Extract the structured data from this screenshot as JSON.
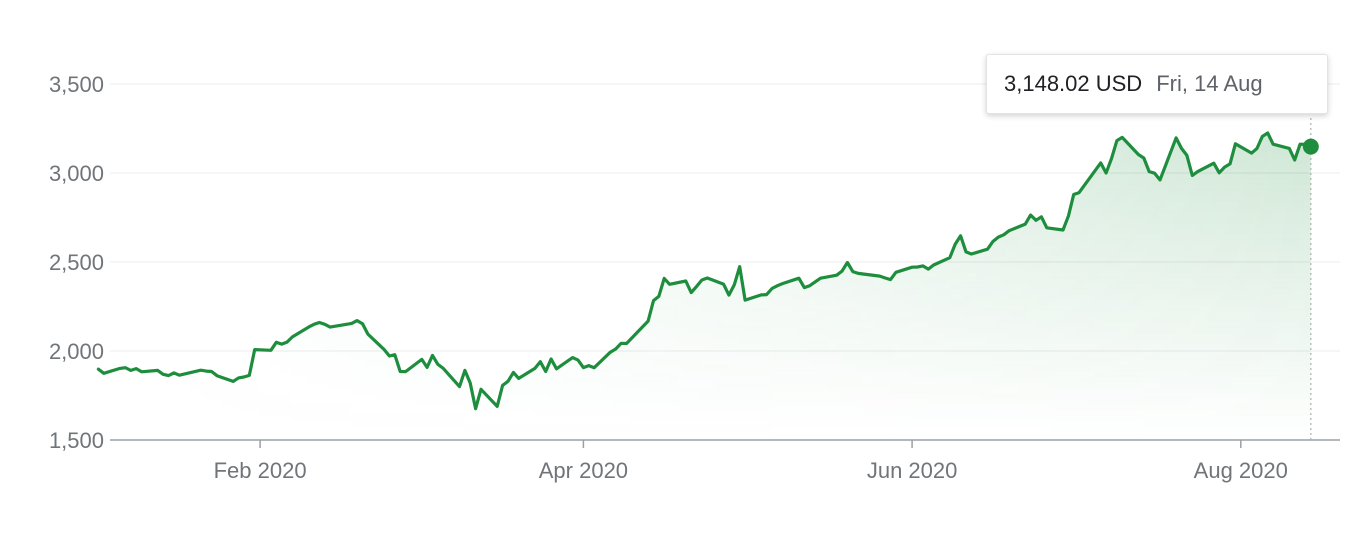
{
  "tooltip": {
    "value": "3,148.02 USD",
    "date": "Fri, 14 Aug"
  },
  "colors": {
    "line": "#1e8e3e",
    "area_top": "#1e8e3e",
    "grid": "#ececec",
    "axis": "#9aa0a6",
    "tick_text": "#70757a"
  },
  "chart_data": {
    "type": "line",
    "title": "",
    "xlabel": "",
    "ylabel": "",
    "ylim": [
      1500,
      3500
    ],
    "yticks": [
      {
        "value": 1500,
        "label": "1,500"
      },
      {
        "value": 2000,
        "label": "2,000"
      },
      {
        "value": 2500,
        "label": "2,500"
      },
      {
        "value": 3000,
        "label": "3,000"
      },
      {
        "value": 3500,
        "label": "3,500"
      }
    ],
    "xlim": [
      "2020-01-06",
      "2020-08-17"
    ],
    "xticks": [
      {
        "date": "2020-02-01",
        "label": "Feb 2020"
      },
      {
        "date": "2020-04-01",
        "label": "Apr 2020"
      },
      {
        "date": "2020-06-01",
        "label": "Jun 2020"
      },
      {
        "date": "2020-08-01",
        "label": "Aug 2020"
      }
    ],
    "grid": true,
    "legend": "none",
    "area_fill": true,
    "highlight": {
      "x": "2020-08-14",
      "y": 3148.02
    },
    "series": [
      {
        "x": [
          "2020-01-02",
          "2020-01-03",
          "2020-01-06",
          "2020-01-07",
          "2020-01-08",
          "2020-01-09",
          "2020-01-10",
          "2020-01-13",
          "2020-01-14",
          "2020-01-15",
          "2020-01-16",
          "2020-01-17",
          "2020-01-21",
          "2020-01-22",
          "2020-01-23",
          "2020-01-24",
          "2020-01-27",
          "2020-01-28",
          "2020-01-29",
          "2020-01-30",
          "2020-01-31",
          "2020-02-03",
          "2020-02-04",
          "2020-02-05",
          "2020-02-06",
          "2020-02-07",
          "2020-02-10",
          "2020-02-11",
          "2020-02-12",
          "2020-02-13",
          "2020-02-14",
          "2020-02-18",
          "2020-02-19",
          "2020-02-20",
          "2020-02-21",
          "2020-02-24",
          "2020-02-25",
          "2020-02-26",
          "2020-02-27",
          "2020-02-28",
          "2020-03-02",
          "2020-03-03",
          "2020-03-04",
          "2020-03-05",
          "2020-03-06",
          "2020-03-09",
          "2020-03-10",
          "2020-03-11",
          "2020-03-12",
          "2020-03-13",
          "2020-03-16",
          "2020-03-17",
          "2020-03-18",
          "2020-03-19",
          "2020-03-20",
          "2020-03-23",
          "2020-03-24",
          "2020-03-25",
          "2020-03-26",
          "2020-03-27",
          "2020-03-30",
          "2020-03-31",
          "2020-04-01",
          "2020-04-02",
          "2020-04-03",
          "2020-04-06",
          "2020-04-07",
          "2020-04-08",
          "2020-04-09",
          "2020-04-13",
          "2020-04-14",
          "2020-04-15",
          "2020-04-16",
          "2020-04-17",
          "2020-04-20",
          "2020-04-21",
          "2020-04-22",
          "2020-04-23",
          "2020-04-24",
          "2020-04-27",
          "2020-04-28",
          "2020-04-29",
          "2020-04-30",
          "2020-05-01",
          "2020-05-04",
          "2020-05-05",
          "2020-05-06",
          "2020-05-07",
          "2020-05-08",
          "2020-05-11",
          "2020-05-12",
          "2020-05-13",
          "2020-05-14",
          "2020-05-15",
          "2020-05-18",
          "2020-05-19",
          "2020-05-20",
          "2020-05-21",
          "2020-05-22",
          "2020-05-26",
          "2020-05-27",
          "2020-05-28",
          "2020-05-29",
          "2020-06-01",
          "2020-06-02",
          "2020-06-03",
          "2020-06-04",
          "2020-06-05",
          "2020-06-08",
          "2020-06-09",
          "2020-06-10",
          "2020-06-11",
          "2020-06-12",
          "2020-06-15",
          "2020-06-16",
          "2020-06-17",
          "2020-06-18",
          "2020-06-19",
          "2020-06-22",
          "2020-06-23",
          "2020-06-24",
          "2020-06-25",
          "2020-06-26",
          "2020-06-29",
          "2020-06-30",
          "2020-07-01",
          "2020-07-02",
          "2020-07-06",
          "2020-07-07",
          "2020-07-08",
          "2020-07-09",
          "2020-07-10",
          "2020-07-13",
          "2020-07-14",
          "2020-07-15",
          "2020-07-16",
          "2020-07-17",
          "2020-07-20",
          "2020-07-21",
          "2020-07-22",
          "2020-07-23",
          "2020-07-24",
          "2020-07-27",
          "2020-07-28",
          "2020-07-29",
          "2020-07-30",
          "2020-07-31",
          "2020-08-03",
          "2020-08-04",
          "2020-08-05",
          "2020-08-06",
          "2020-08-07",
          "2020-08-10",
          "2020-08-11",
          "2020-08-12",
          "2020-08-13",
          "2020-08-14"
        ],
        "values": [
          1898,
          1875,
          1902,
          1906,
          1891,
          1901,
          1883,
          1891,
          1869,
          1862,
          1877,
          1864,
          1892,
          1887,
          1885,
          1861,
          1829,
          1849,
          1854,
          1863,
          2008,
          2004,
          2049,
          2039,
          2050,
          2079,
          2134,
          2150,
          2160,
          2150,
          2134,
          2155,
          2171,
          2153,
          2095,
          2009,
          1972,
          1979,
          1885,
          1884,
          1953,
          1908,
          1975,
          1925,
          1902,
          1800,
          1891,
          1820,
          1676,
          1785,
          1689,
          1807,
          1830,
          1880,
          1846,
          1902,
          1940,
          1885,
          1955,
          1900,
          1963,
          1949,
          1907,
          1918,
          1906,
          1993,
          2011,
          2043,
          2042,
          2168,
          2283,
          2307,
          2408,
          2375,
          2393,
          2328,
          2363,
          2399,
          2410,
          2376,
          2314,
          2372,
          2474,
          2286,
          2315,
          2317,
          2351,
          2367,
          2379,
          2409,
          2356,
          2367,
          2388,
          2409,
          2426,
          2449,
          2497,
          2446,
          2436,
          2421,
          2410,
          2401,
          2442,
          2471,
          2472,
          2478,
          2460,
          2483,
          2524,
          2600,
          2647,
          2557,
          2545,
          2572,
          2615,
          2640,
          2653,
          2676,
          2713,
          2764,
          2734,
          2754,
          2692,
          2680,
          2758,
          2879,
          2890,
          3057,
          3000,
          3081,
          3182,
          3200,
          3104,
          3084,
          3008,
          2999,
          2961,
          3197,
          3138,
          3099,
          2986,
          3008,
          3055,
          3001,
          3033,
          3051,
          3164,
          3112,
          3138,
          3205,
          3225,
          3162,
          3138,
          3073,
          3162,
          3161,
          3148
        ]
      }
    ]
  }
}
